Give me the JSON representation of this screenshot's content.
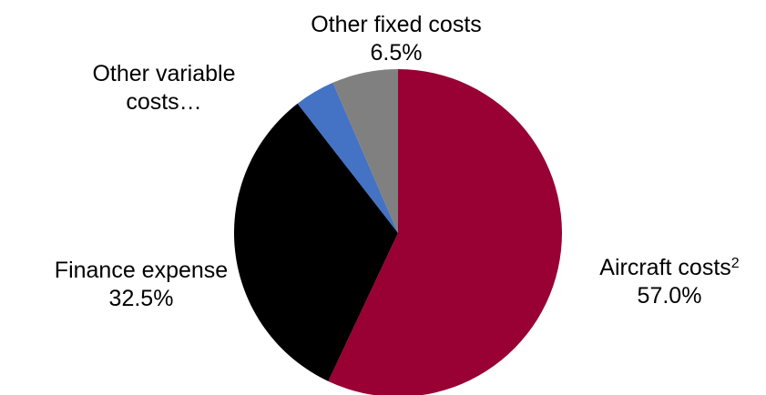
{
  "chart_data": {
    "type": "pie",
    "slices": [
      {
        "label": "Aircraft costs",
        "footnote": "2",
        "value": 57.0,
        "value_label": "57.0%",
        "color": "#990033"
      },
      {
        "label": "Finance expense",
        "display_label": "Finance expense",
        "value": 32.5,
        "value_label": "32.5%",
        "color": "#000000"
      },
      {
        "label": "Other variable costs…",
        "display_line1": "Other variable",
        "display_line2": "costs…",
        "value": 4.0,
        "color": "#4472C4"
      },
      {
        "label": "Other fixed costs",
        "value": 6.5,
        "value_label": "6.5%",
        "color": "#808080"
      }
    ],
    "start_angle_deg": 0,
    "direction": "clockwise"
  }
}
